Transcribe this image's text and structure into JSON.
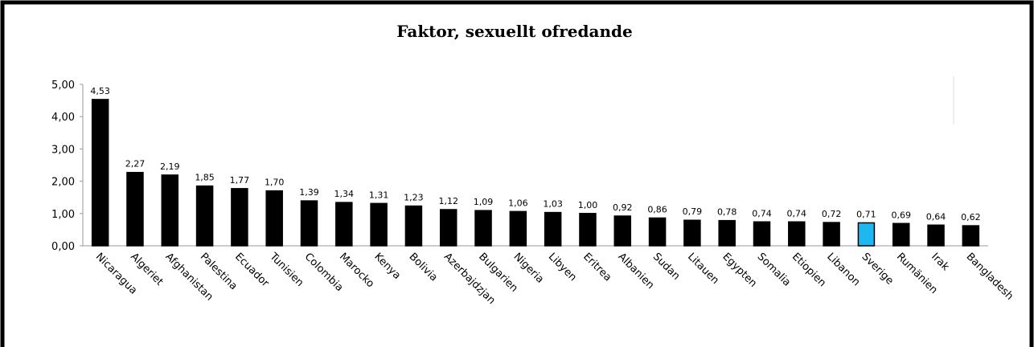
{
  "chart_data": {
    "type": "bar",
    "title": "Faktor, sexuellt ofredande",
    "categories": [
      "Nicaragua",
      "Algeriet",
      "Afghanistan",
      "Palestina",
      "Ecuador",
      "Tunisien",
      "Colombia",
      "Marocko",
      "Kenya",
      "Bolivia",
      "Azerbajdzjan",
      "Bulgarien",
      "Nigeria",
      "Libyen",
      "Eritrea",
      "Albanien",
      "Sudan",
      "Litauen",
      "Egypten",
      "Somalia",
      "Etiopien",
      "Libanon",
      "Sverige",
      "Rumänien",
      "Irak",
      "Bangladesh"
    ],
    "values": [
      4.53,
      2.27,
      2.19,
      1.85,
      1.77,
      1.7,
      1.39,
      1.34,
      1.31,
      1.23,
      1.12,
      1.09,
      1.06,
      1.03,
      1.0,
      0.92,
      0.86,
      0.79,
      0.78,
      0.74,
      0.74,
      0.72,
      0.71,
      0.69,
      0.64,
      0.62
    ],
    "value_labels": [
      "4,53",
      "2,27",
      "2,19",
      "1,85",
      "1,77",
      "1,70",
      "1,39",
      "1,34",
      "1,31",
      "1,23",
      "1,12",
      "1,09",
      "1,06",
      "1,03",
      "1,00",
      "0,92",
      "0,86",
      "0,79",
      "0,78",
      "0,74",
      "0,74",
      "0,72",
      "0,71",
      "0,69",
      "0,64",
      "0,62"
    ],
    "colors": [
      "#000000",
      "#000000",
      "#000000",
      "#000000",
      "#000000",
      "#000000",
      "#000000",
      "#000000",
      "#000000",
      "#000000",
      "#000000",
      "#000000",
      "#000000",
      "#000000",
      "#000000",
      "#000000",
      "#000000",
      "#000000",
      "#000000",
      "#000000",
      "#000000",
      "#000000",
      "#1eb8f0",
      "#000000",
      "#000000",
      "#000000"
    ],
    "ylim": [
      0,
      5
    ],
    "yticks": [
      {
        "value": 0,
        "label": "0,00"
      },
      {
        "value": 1,
        "label": "1,00"
      },
      {
        "value": 2,
        "label": "2,00"
      },
      {
        "value": 3,
        "label": "3,00"
      },
      {
        "value": 4,
        "label": "4,00"
      },
      {
        "value": 5,
        "label": "5,00"
      }
    ],
    "grid": false
  }
}
